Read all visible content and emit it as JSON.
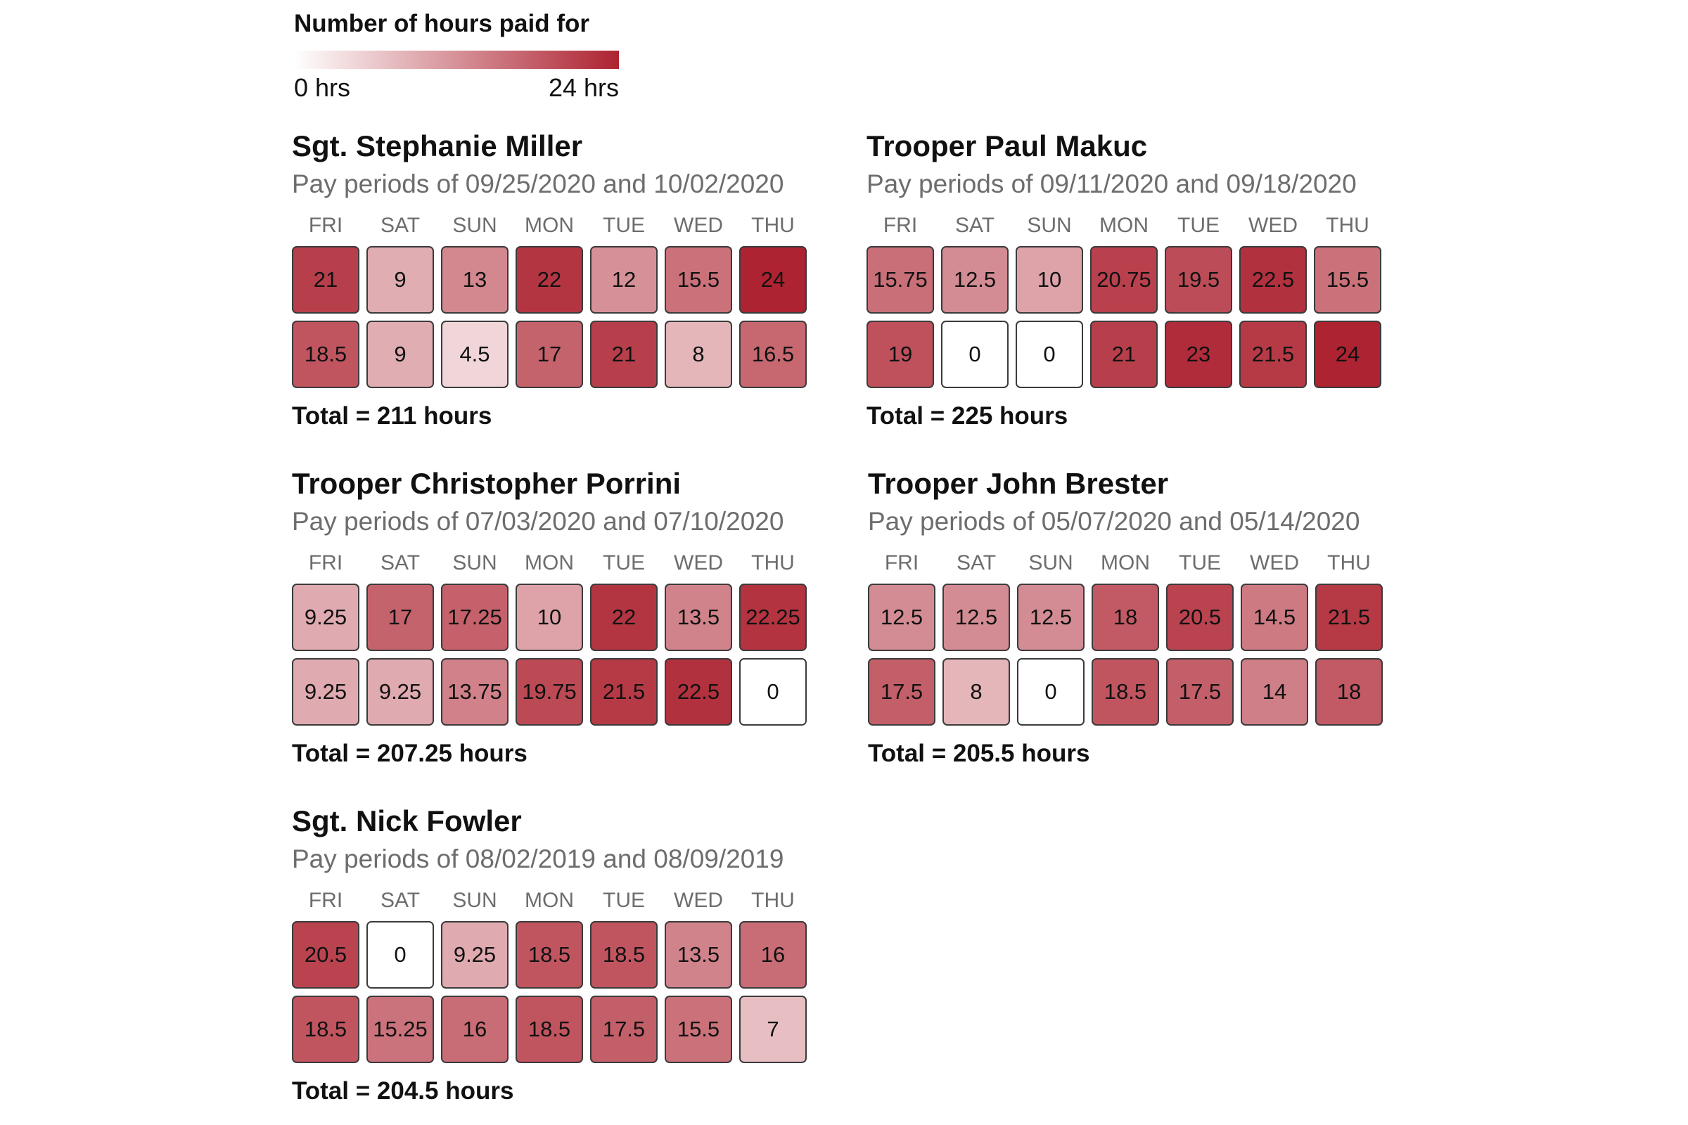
{
  "legend": {
    "title": "Number of hours paid for",
    "min_label": "0 hrs",
    "max_label": "24 hrs",
    "color_low": "#ffffff",
    "color_high": "#ad2331"
  },
  "chart_data": {
    "type": "heatmap",
    "title": "",
    "days": [
      "FRI",
      "SAT",
      "SUN",
      "MON",
      "TUE",
      "WED",
      "THU"
    ],
    "scale": {
      "min": 0,
      "max": 24,
      "color_low": "#ffffff",
      "color_high": "#ad2331"
    },
    "panels": [
      {
        "name": "Sgt. Stephanie Miller",
        "subtitle": "Pay periods of 09/25/2020 and 10/02/2020",
        "rows": [
          [
            21,
            9,
            13,
            22,
            12,
            15.5,
            24
          ],
          [
            18.5,
            9,
            4.5,
            17,
            21,
            8,
            16.5
          ]
        ],
        "total": "Total = 211 hours"
      },
      {
        "name": "Trooper Paul Makuc",
        "subtitle": "Pay periods of 09/11/2020 and 09/18/2020",
        "rows": [
          [
            15.75,
            12.5,
            10,
            20.75,
            19.5,
            22.5,
            15.5
          ],
          [
            19,
            0,
            0,
            21,
            23,
            21.5,
            24
          ]
        ],
        "total": "Total = 225 hours"
      },
      {
        "name": "Trooper Christopher Porrini",
        "subtitle": "Pay periods of 07/03/2020 and 07/10/2020",
        "rows": [
          [
            9.25,
            17,
            17.25,
            10,
            22,
            13.5,
            22.25
          ],
          [
            9.25,
            9.25,
            13.75,
            19.75,
            21.5,
            22.5,
            0
          ]
        ],
        "total": "Total = 207.25 hours"
      },
      {
        "name": "Trooper John Brester",
        "subtitle": "Pay periods of 05/07/2020 and 05/14/2020",
        "rows": [
          [
            12.5,
            12.5,
            12.5,
            18,
            20.5,
            14.5,
            21.5
          ],
          [
            17.5,
            8,
            0,
            18.5,
            17.5,
            14,
            18
          ]
        ],
        "total": "Total = 205.5 hours"
      },
      {
        "name": "Sgt. Nick Fowler",
        "subtitle": "Pay periods of 08/02/2019 and 08/09/2019",
        "rows": [
          [
            20.5,
            0,
            9.25,
            18.5,
            18.5,
            13.5,
            16
          ],
          [
            18.5,
            15.25,
            16,
            18.5,
            17.5,
            15.5,
            7
          ]
        ],
        "total": "Total = 204.5 hours"
      }
    ]
  }
}
